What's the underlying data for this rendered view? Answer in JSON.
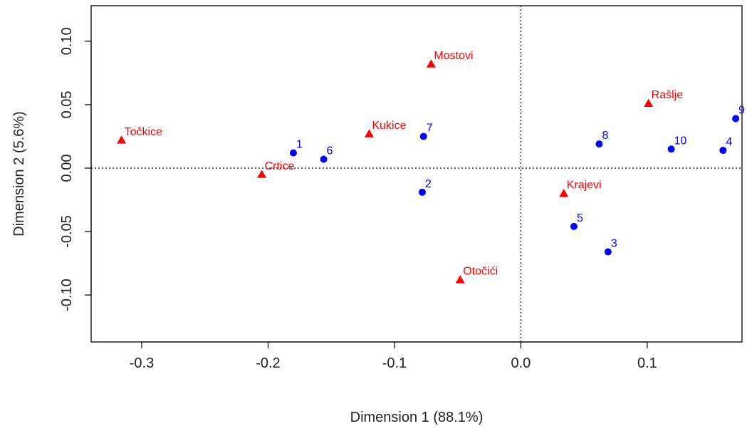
{
  "chart_data": {
    "type": "scatter",
    "xlabel": "Dimension 1 (88.1%)",
    "ylabel": "Dimension 2 (5.6%)",
    "xlim": [
      -0.34,
      0.175
    ],
    "ylim": [
      -0.137,
      0.128
    ],
    "xticks": [
      {
        "value": -0.3,
        "label": "-0.3"
      },
      {
        "value": -0.2,
        "label": "-0.2"
      },
      {
        "value": -0.1,
        "label": "-0.1"
      },
      {
        "value": 0.0,
        "label": "0.0"
      },
      {
        "value": 0.1,
        "label": "0.1"
      }
    ],
    "yticks": [
      {
        "value": -0.1,
        "label": "-0.10"
      },
      {
        "value": -0.05,
        "label": "-0.05"
      },
      {
        "value": 0.0,
        "label": "0.00"
      },
      {
        "value": 0.05,
        "label": "0.05"
      },
      {
        "value": 0.1,
        "label": "0.10"
      }
    ],
    "reference_lines": {
      "x": 0,
      "y": 0,
      "style": "dotted"
    },
    "grid": false,
    "series": [
      {
        "marker": "triangle",
        "color": "#ff0000",
        "points": [
          {
            "label": "Točkice",
            "x": -0.316,
            "y": 0.022
          },
          {
            "label": "Crtice",
            "x": -0.205,
            "y": -0.005
          },
          {
            "label": "Kukice",
            "x": -0.12,
            "y": 0.027
          },
          {
            "label": "Mostovi",
            "x": -0.071,
            "y": 0.082
          },
          {
            "label": "Otočići",
            "x": -0.048,
            "y": -0.088
          },
          {
            "label": "Krajevi",
            "x": 0.034,
            "y": -0.02
          },
          {
            "label": "Rašlje",
            "x": 0.101,
            "y": 0.051
          }
        ]
      },
      {
        "marker": "circle",
        "color": "#0000ff",
        "points": [
          {
            "label": "1",
            "x": -0.18,
            "y": 0.012
          },
          {
            "label": "6",
            "x": -0.156,
            "y": 0.007
          },
          {
            "label": "7",
            "x": -0.077,
            "y": 0.025
          },
          {
            "label": "2",
            "x": -0.078,
            "y": -0.019
          },
          {
            "label": "8",
            "x": 0.062,
            "y": 0.019
          },
          {
            "label": "5",
            "x": 0.042,
            "y": -0.046
          },
          {
            "label": "3",
            "x": 0.069,
            "y": -0.066
          },
          {
            "label": "10",
            "x": 0.119,
            "y": 0.015
          },
          {
            "label": "4",
            "x": 0.16,
            "y": 0.014
          },
          {
            "label": "9",
            "x": 0.17,
            "y": 0.039
          }
        ]
      }
    ]
  }
}
